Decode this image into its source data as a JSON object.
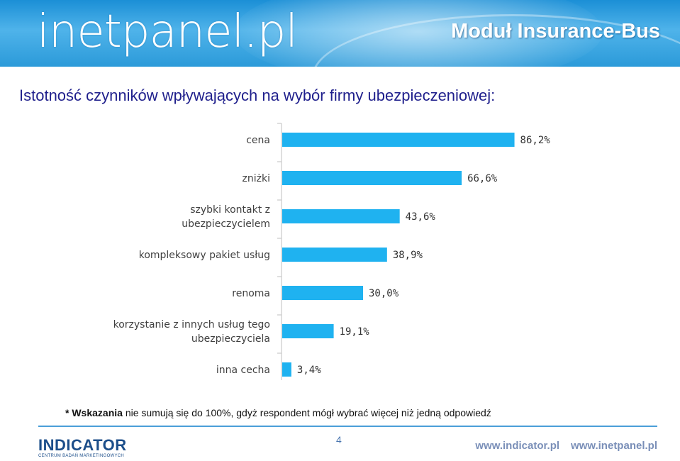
{
  "header": {
    "logo_text": "inetpanel.pl",
    "module_title": "Moduł Insurance-Bus"
  },
  "slide_title": "Istotność czynników wpływających na wybór firmy ubezpieczeniowej:",
  "chart_data": {
    "type": "bar",
    "orientation": "horizontal",
    "categories": [
      [
        "cena"
      ],
      [
        "zniżki"
      ],
      [
        "szybki kontakt z",
        "ubezpieczycielem"
      ],
      [
        "kompleksowy pakiet usług"
      ],
      [
        "renoma"
      ],
      [
        "korzystanie z innych usług tego",
        "ubezpieczyciela"
      ],
      [
        "inna cecha"
      ]
    ],
    "values": [
      86.2,
      66.6,
      43.6,
      38.9,
      30.0,
      19.1,
      3.4
    ],
    "value_labels": [
      "86,2%",
      "66,6%",
      "43,6%",
      "38,9%",
      "30,0%",
      "19,1%",
      "3,4%"
    ],
    "unit": "%",
    "bar_color": "#1fb2f0",
    "grid": false,
    "legend": "none"
  },
  "footnote": {
    "bold": "* Wskazania",
    "text": " nie sumują się do 100%, gdyż respondent mógł wybrać więcej niż jedną odpowiedź"
  },
  "footer": {
    "indicator_name": "INDICATOR",
    "indicator_sub": "CENTRUM BADAŃ MARKETINGOWYCH",
    "page_number": "4",
    "url1": "www.indicator.pl",
    "url2": "www.inetpanel.pl"
  },
  "colors": {
    "title": "#1f1f8c",
    "header_blue": "#2b9ad9",
    "rule": "#4a9fd8"
  }
}
